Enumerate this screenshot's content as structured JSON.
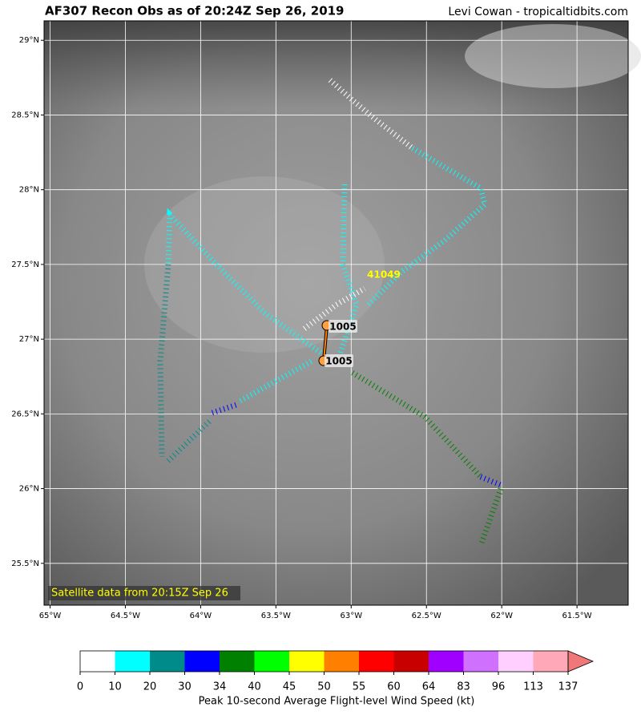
{
  "header": {
    "title": "AF307 Recon Obs as of 20:24Z Sep 26, 2019",
    "credit": "Levi Cowan - tropicaltidbits.com"
  },
  "map": {
    "lon_range": [
      -65.04,
      -61.16
    ],
    "lat_range": [
      25.22,
      29.13
    ],
    "lon_ticks": [
      {
        "value": -65,
        "label": "65°W"
      },
      {
        "value": -64.5,
        "label": "64.5°W"
      },
      {
        "value": -64,
        "label": "64°W"
      },
      {
        "value": -63.5,
        "label": "63.5°W"
      },
      {
        "value": -63,
        "label": "63°W"
      },
      {
        "value": -62.5,
        "label": "62.5°W"
      },
      {
        "value": -62,
        "label": "62°W"
      },
      {
        "value": -61.5,
        "label": "61.5°W"
      }
    ],
    "lat_ticks": [
      {
        "value": 29,
        "label": "29°N"
      },
      {
        "value": 28.5,
        "label": "28.5°N"
      },
      {
        "value": 28,
        "label": "28°N"
      },
      {
        "value": 27.5,
        "label": "27.5°N"
      },
      {
        "value": 27,
        "label": "27°N"
      },
      {
        "value": 26.5,
        "label": "26.5°N"
      },
      {
        "value": 26,
        "label": "26°N"
      },
      {
        "value": 25.5,
        "label": "25.5°N"
      }
    ],
    "grid": true,
    "annotation": "Satellite data from 20:15Z Sep 26",
    "station_labels": [
      "1005",
      "1005",
      "41049"
    ]
  },
  "colorbar": {
    "label": "Peak 10-second Average Flight-level Wind Speed (kt)",
    "bounds": [
      0,
      10,
      20,
      30,
      34,
      40,
      45,
      50,
      55,
      60,
      64,
      83,
      96,
      113,
      137
    ],
    "colors": [
      "#ffffff",
      "#00ffff",
      "#008b8b",
      "#0000ff",
      "#008000",
      "#00ff00",
      "#ffff00",
      "#ff8000",
      "#ff0000",
      "#c80000",
      "#a000ff",
      "#d070ff",
      "#ffd0ff",
      "#ffa8b8"
    ],
    "extend_color": "#f07878"
  }
}
